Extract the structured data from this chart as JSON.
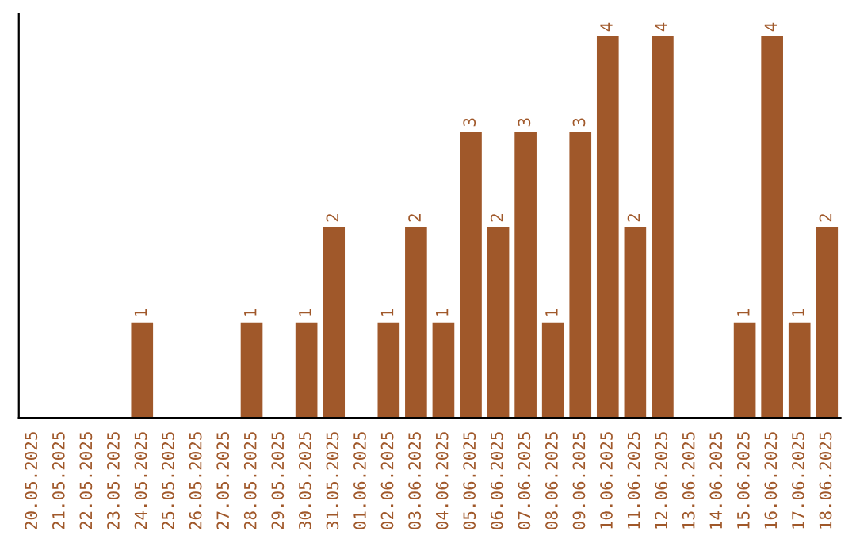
{
  "chart_data": {
    "type": "bar",
    "categories": [
      "20.05.2025",
      "21.05.2025",
      "22.05.2025",
      "23.05.2025",
      "24.05.2025",
      "25.05.2025",
      "26.05.2025",
      "27.05.2025",
      "28.05.2025",
      "29.05.2025",
      "30.05.2025",
      "31.05.2025",
      "01.06.2025",
      "02.06.2025",
      "03.06.2025",
      "04.06.2025",
      "05.06.2025",
      "06.06.2025",
      "07.06.2025",
      "08.06.2025",
      "09.06.2025",
      "10.06.2025",
      "11.06.2025",
      "12.06.2025",
      "13.06.2025",
      "14.06.2025",
      "15.06.2025",
      "16.06.2025",
      "17.06.2025",
      "18.06.2025"
    ],
    "values": [
      0,
      0,
      0,
      0,
      1,
      0,
      0,
      0,
      1,
      0,
      1,
      2,
      0,
      1,
      2,
      1,
      3,
      2,
      3,
      1,
      3,
      4,
      2,
      4,
      0,
      0,
      1,
      4,
      1,
      2
    ],
    "value_labels": [
      null,
      null,
      null,
      null,
      "1",
      null,
      null,
      null,
      "1",
      null,
      "1",
      "2",
      null,
      "1",
      "2",
      "1",
      "3",
      "2",
      "3",
      "1",
      "3",
      "4",
      "2",
      "4",
      null,
      null,
      "1",
      "4",
      "1",
      "2"
    ],
    "color": "#a0582a",
    "grid": false,
    "legend": false
  }
}
